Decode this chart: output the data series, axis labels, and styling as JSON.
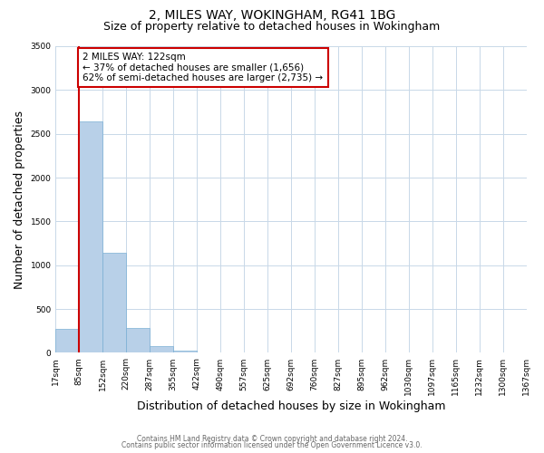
{
  "title": "2, MILES WAY, WOKINGHAM, RG41 1BG",
  "subtitle": "Size of property relative to detached houses in Wokingham",
  "bar_heights": [
    270,
    2640,
    1140,
    280,
    80,
    30,
    0,
    0,
    0,
    0,
    0,
    0,
    0,
    0,
    0,
    0,
    0,
    0,
    0,
    0
  ],
  "bin_labels": [
    "17sqm",
    "85sqm",
    "152sqm",
    "220sqm",
    "287sqm",
    "355sqm",
    "422sqm",
    "490sqm",
    "557sqm",
    "625sqm",
    "692sqm",
    "760sqm",
    "827sqm",
    "895sqm",
    "962sqm",
    "1030sqm",
    "1097sqm",
    "1165sqm",
    "1232sqm",
    "1300sqm",
    "1367sqm"
  ],
  "bar_color": "#b8d0e8",
  "bar_edge_color": "#7aafd4",
  "vline_x": 1.0,
  "vline_color": "#cc0000",
  "annotation_box_text": "2 MILES WAY: 122sqm\n← 37% of detached houses are smaller (1,656)\n62% of semi-detached houses are larger (2,735) →",
  "annotation_box_color": "#cc0000",
  "annotation_box_bg": "#ffffff",
  "xlabel": "Distribution of detached houses by size in Wokingham",
  "ylabel": "Number of detached properties",
  "ylim": [
    0,
    3500
  ],
  "yticks": [
    0,
    500,
    1000,
    1500,
    2000,
    2500,
    3000,
    3500
  ],
  "footer_line1": "Contains HM Land Registry data © Crown copyright and database right 2024.",
  "footer_line2": "Contains public sector information licensed under the Open Government Licence v3.0.",
  "bg_color": "#ffffff",
  "grid_color": "#c8d8e8",
  "title_fontsize": 10,
  "subtitle_fontsize": 9,
  "axis_label_fontsize": 8,
  "tick_fontsize": 6.5,
  "annotation_fontsize": 7.5,
  "footer_fontsize": 5.5
}
